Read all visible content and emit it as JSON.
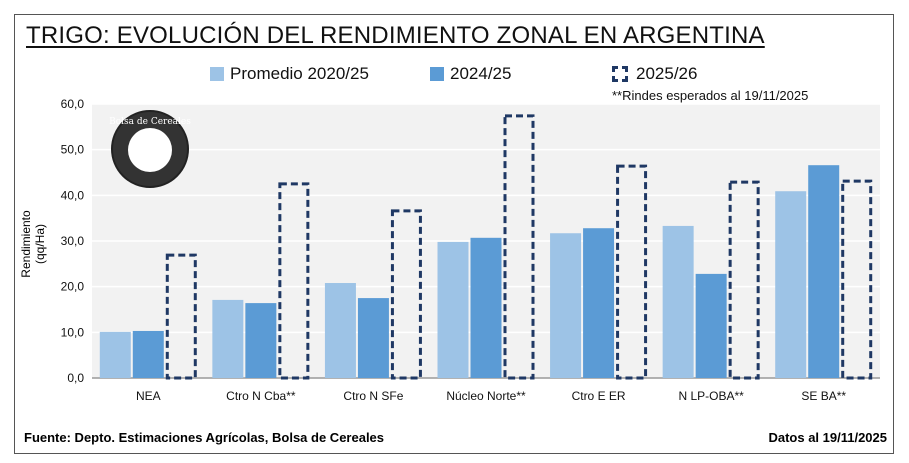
{
  "chart_data": {
    "type": "bar",
    "title": "TRIGO: EVOLUCIÓN DEL RENDIMIENTO ZONAL EN ARGENTINA",
    "ylabel": "Rendimiento (qq/Ha)",
    "xlabel": "",
    "ylim": [
      0,
      60
    ],
    "yticks": [
      "0,0",
      "10,0",
      "20,0",
      "30,0",
      "40,0",
      "50,0",
      "60,0"
    ],
    "categories": [
      "NEA",
      "Ctro N Cba**",
      "Ctro N SFe",
      "Núcleo Norte**",
      "Ctro E ER",
      "N LP-OBA**",
      "SE BA**"
    ],
    "series": [
      {
        "name": "Promedio 2020/25",
        "color": "#9dc3e6",
        "values": [
          10.1,
          17.1,
          20.8,
          29.8,
          31.7,
          33.3,
          40.9
        ]
      },
      {
        "name": "2024/25",
        "color": "#5b9bd5",
        "values": [
          10.3,
          16.4,
          17.5,
          30.7,
          32.8,
          22.8,
          46.6
        ]
      },
      {
        "name": "2025/26",
        "color": "#1f3864",
        "style": "dashed-outline",
        "values": [
          26.9,
          42.5,
          36.6,
          57.4,
          46.4,
          42.9,
          43.1
        ]
      }
    ],
    "legend_position": "top",
    "grid": true,
    "annotation": "**Rindes esperados al 19/11/2025"
  },
  "logo_text": "Bolsa de Cereales",
  "footer": {
    "source": "Fuente: Depto. Estimaciones Agrícolas, Bolsa de Cereales",
    "date": "Datos al 19/11/2025"
  }
}
